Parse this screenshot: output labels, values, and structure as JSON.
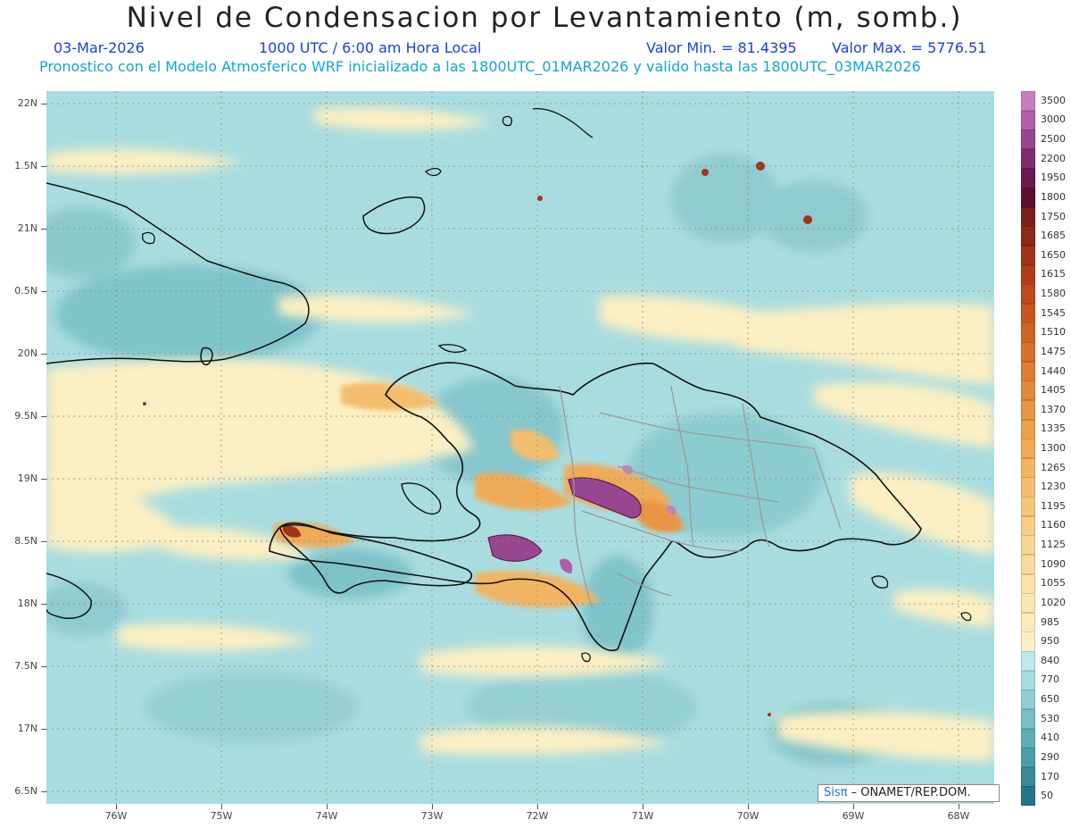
{
  "header": {
    "title": "Nivel de Condensacion por Levantamiento (m, somb.)",
    "date": "03-Mar-2026",
    "time": "1000 UTC / 6:00 am Hora Local",
    "min_label": "Valor Min. = 81.4395",
    "max_label": "Valor Max. = 5776.51",
    "model_line": "Pronostico con el Modelo Atmosferico WRF inicializado a las 1800UTC_01MAR2026 y valido hasta las  1800UTC_03MAR2026"
  },
  "axes": {
    "lat_labels": [
      "22N",
      "1.5N",
      "21N",
      "0.5N",
      "20N",
      "9.5N",
      "19N",
      "8.5N",
      "18N",
      "7.5N",
      "17N",
      "6.5N"
    ],
    "lon_labels": [
      "76W",
      "75W",
      "74W",
      "73W",
      "72W",
      "71W",
      "70W",
      "69W",
      "68W"
    ]
  },
  "legend": {
    "values": [
      "3500",
      "3000",
      "2500",
      "2200",
      "1950",
      "1800",
      "1750",
      "1685",
      "1650",
      "1615",
      "1580",
      "1545",
      "1510",
      "1475",
      "1440",
      "1405",
      "1370",
      "1335",
      "1300",
      "1265",
      "1230",
      "1195",
      "1160",
      "1125",
      "1090",
      "1055",
      "1020",
      "985",
      "950",
      "840",
      "770",
      "650",
      "530",
      "410",
      "290",
      "170",
      "50"
    ],
    "colors": [
      "#c57ec0",
      "#b05fa8",
      "#96458f",
      "#7e2e6f",
      "#6a1b4e",
      "#5a1030",
      "#7a1f1a",
      "#8c2a18",
      "#a03318",
      "#b03d18",
      "#bc4a1c",
      "#c55621",
      "#cf6226",
      "#d86f2c",
      "#df7c33",
      "#e4883b",
      "#e99444",
      "#ec9f4e",
      "#efaa58",
      "#f1b463",
      "#f3bd6e",
      "#f5c67a",
      "#f6ce86",
      "#f7d592",
      "#f8db9d",
      "#f9e1a7",
      "#fae6b1",
      "#fbeab9",
      "#fcefc3",
      "#bfe8ee",
      "#a8dbe0",
      "#8fcdd3",
      "#77bec6",
      "#5eaeb8",
      "#4a9eaa",
      "#37899a",
      "#24738a"
    ]
  },
  "credit": {
    "brand": "Sisπ",
    "text": "– ONAMET/REP.DOM."
  },
  "colors": {
    "sea_base": "#a9dce0",
    "low_lcl": "#fcefc3",
    "mid_lcl": "#efaa58",
    "high_lcl": "#96458f",
    "coast": "#111111",
    "border": "#9a9a9a"
  }
}
